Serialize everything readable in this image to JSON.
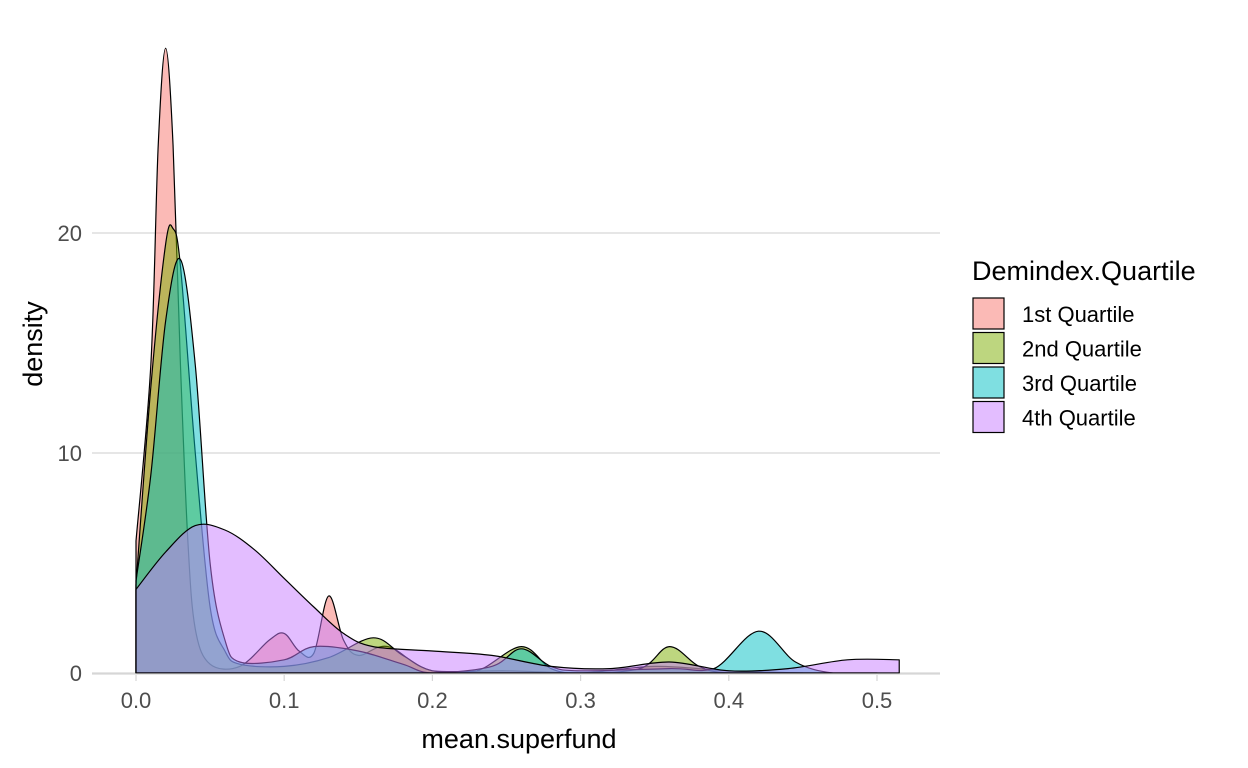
{
  "chart_data": {
    "type": "area",
    "title": "",
    "xlabel": "mean.superfund",
    "ylabel": "density",
    "xlim": [
      0,
      0.515
    ],
    "ylim": [
      0,
      28.5
    ],
    "x_ticks": [
      0.0,
      0.1,
      0.2,
      0.3,
      0.4,
      0.5
    ],
    "x_tick_labels": [
      "0.0",
      "0.1",
      "0.2",
      "0.3",
      "0.4",
      "0.5"
    ],
    "y_ticks": [
      0,
      10,
      20
    ],
    "y_tick_labels": [
      "0",
      "10",
      "20"
    ],
    "grid": "horizontal major",
    "legend": {
      "title": "Demindex.Quartile",
      "placement": "right"
    },
    "series": [
      {
        "name": "1st Quartile",
        "color": "#F8766D",
        "points": [
          [
            0,
            6
          ],
          [
            0.01,
            14
          ],
          [
            0.015,
            24
          ],
          [
            0.02,
            28.4
          ],
          [
            0.025,
            24
          ],
          [
            0.03,
            14
          ],
          [
            0.035,
            6
          ],
          [
            0.04,
            2
          ],
          [
            0.05,
            0.4
          ],
          [
            0.07,
            0.3
          ],
          [
            0.09,
            1.5
          ],
          [
            0.1,
            1.8
          ],
          [
            0.11,
            1
          ],
          [
            0.12,
            0.9
          ],
          [
            0.13,
            3.5
          ],
          [
            0.14,
            1.5
          ],
          [
            0.15,
            0.8
          ],
          [
            0.17,
            1.2
          ],
          [
            0.2,
            0.1
          ],
          [
            0.25,
            0.1
          ],
          [
            0.3,
            0
          ],
          [
            0.35,
            0.3
          ],
          [
            0.4,
            0.1
          ],
          [
            0.45,
            0
          ],
          [
            0.47,
            0
          ]
        ]
      },
      {
        "name": "2nd Quartile",
        "color": "#7CAE00",
        "points": [
          [
            0,
            4
          ],
          [
            0.01,
            13
          ],
          [
            0.02,
            19.5
          ],
          [
            0.025,
            20.2
          ],
          [
            0.03,
            18.5
          ],
          [
            0.04,
            10
          ],
          [
            0.05,
            3
          ],
          [
            0.06,
            1
          ],
          [
            0.07,
            0.4
          ],
          [
            0.1,
            0.3
          ],
          [
            0.13,
            0.7
          ],
          [
            0.16,
            1.6
          ],
          [
            0.18,
            0.8
          ],
          [
            0.2,
            0.1
          ],
          [
            0.23,
            0.1
          ],
          [
            0.26,
            1.2
          ],
          [
            0.28,
            0.2
          ],
          [
            0.3,
            0
          ],
          [
            0.34,
            0.2
          ],
          [
            0.36,
            1.2
          ],
          [
            0.38,
            0.3
          ],
          [
            0.4,
            0
          ],
          [
            0.45,
            0
          ]
        ]
      },
      {
        "name": "3rd Quartile",
        "color": "#00BFC4",
        "points": [
          [
            0,
            4.2
          ],
          [
            0.01,
            9
          ],
          [
            0.02,
            16
          ],
          [
            0.03,
            18.8
          ],
          [
            0.04,
            14
          ],
          [
            0.05,
            5
          ],
          [
            0.06,
            1.5
          ],
          [
            0.07,
            0.5
          ],
          [
            0.1,
            0.6
          ],
          [
            0.12,
            1.2
          ],
          [
            0.15,
            1
          ],
          [
            0.18,
            0.4
          ],
          [
            0.2,
            0
          ],
          [
            0.24,
            0.3
          ],
          [
            0.26,
            1.1
          ],
          [
            0.28,
            0.3
          ],
          [
            0.3,
            0.1
          ],
          [
            0.36,
            0.2
          ],
          [
            0.39,
            0.2
          ],
          [
            0.42,
            1.9
          ],
          [
            0.445,
            0.5
          ],
          [
            0.47,
            0
          ],
          [
            0.5,
            0
          ]
        ]
      },
      {
        "name": "4th Quartile",
        "color": "#C77CFF",
        "points": [
          [
            0,
            3.8
          ],
          [
            0.02,
            5.5
          ],
          [
            0.04,
            6.7
          ],
          [
            0.06,
            6.5
          ],
          [
            0.08,
            5.6
          ],
          [
            0.1,
            4.3
          ],
          [
            0.12,
            3
          ],
          [
            0.14,
            1.8
          ],
          [
            0.16,
            1.2
          ],
          [
            0.2,
            1
          ],
          [
            0.24,
            0.8
          ],
          [
            0.28,
            0.3
          ],
          [
            0.32,
            0.2
          ],
          [
            0.36,
            0.5
          ],
          [
            0.4,
            0.1
          ],
          [
            0.44,
            0.2
          ],
          [
            0.48,
            0.6
          ],
          [
            0.515,
            0.6
          ]
        ]
      }
    ]
  }
}
